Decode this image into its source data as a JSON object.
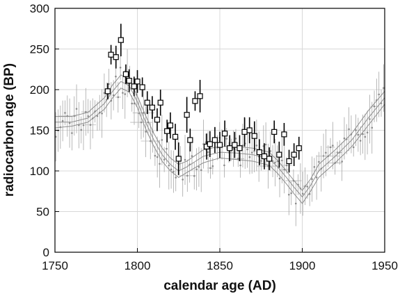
{
  "chart_data": {
    "type": "scatter",
    "title": "",
    "xlabel": "calendar age (AD)",
    "ylabel": "radiocarbon age (BP)",
    "xlim": [
      1750,
      1950
    ],
    "ylim": [
      0,
      300
    ],
    "xticks": [
      1750,
      1800,
      1850,
      1900,
      1950
    ],
    "yticks": [
      0,
      50,
      100,
      150,
      200,
      250,
      300
    ],
    "grid": true,
    "legend": "none",
    "colors": {
      "measurements": "#000000",
      "calibration": "#8c8c8c",
      "grid": "#d8d8d8"
    },
    "series": [
      {
        "marker": "open-square",
        "x": [
          1782,
          1784,
          1787,
          1790,
          1793,
          1795,
          1798,
          1800,
          1803,
          1806,
          1809,
          1812,
          1814,
          1818,
          1820,
          1823,
          1825,
          1830,
          1832,
          1835,
          1838,
          1842,
          1844,
          1847,
          1850,
          1853,
          1856,
          1859,
          1862,
          1865,
          1868,
          1871,
          1874,
          1877,
          1880,
          1883,
          1886,
          1889,
          1892,
          1895,
          1898
        ],
        "y": [
          198,
          243,
          240,
          261,
          219,
          211,
          204,
          210,
          203,
          184,
          178,
          163,
          184,
          149,
          156,
          142,
          115,
          169,
          138,
          186,
          192,
          130,
          133,
          138,
          132,
          146,
          128,
          132,
          128,
          148,
          150,
          143,
          123,
          118,
          115,
          148,
          120,
          145,
          112,
          120,
          128
        ],
        "err": [
          10,
          12,
          14,
          20,
          12,
          14,
          12,
          14,
          12,
          14,
          14,
          14,
          16,
          14,
          16,
          16,
          20,
          22,
          14,
          12,
          20,
          16,
          16,
          16,
          16,
          16,
          16,
          16,
          16,
          18,
          16,
          18,
          16,
          16,
          14,
          14,
          16,
          14,
          14,
          14,
          14
        ]
      },
      {
        "name": "",
        "marker": "line",
        "x": [
          1750,
          1760,
          1770,
          1780,
          1785,
          1790,
          1795,
          1800,
          1805,
          1810,
          1815,
          1820,
          1825,
          1830,
          1840,
          1850,
          1860,
          1870,
          1880,
          1885,
          1890,
          1895,
          1900,
          1905,
          1910,
          1920,
          1930,
          1940,
          1950
        ],
        "y": [
          160,
          160,
          165,
          183,
          198,
          210,
          205,
          185,
          160,
          138,
          120,
          108,
          100,
          105,
          118,
          123,
          122,
          120,
          115,
          105,
          93,
          80,
          68,
          82,
          100,
          118,
          138,
          165,
          190
        ]
      },
      {
        "marker": "line",
        "x": [
          1750,
          1760,
          1770,
          1780,
          1785,
          1790,
          1795,
          1800,
          1805,
          1810,
          1815,
          1820,
          1825,
          1830,
          1840,
          1850,
          1860,
          1870,
          1880,
          1885,
          1890,
          1895,
          1900,
          1905,
          1910,
          1920,
          1930,
          1940,
          1950
        ],
        "y": [
          153,
          155,
          160,
          176,
          190,
          202,
          197,
          178,
          152,
          130,
          112,
          100,
          92,
          98,
          110,
          116,
          114,
          112,
          107,
          97,
          85,
          72,
          60,
          75,
          92,
          110,
          130,
          156,
          182
        ]
      },
      {
        "marker": "line",
        "x": [
          1750,
          1760,
          1770,
          1780,
          1785,
          1790,
          1795,
          1800,
          1805,
          1810,
          1815,
          1820,
          1825,
          1830,
          1840,
          1850,
          1860,
          1870,
          1880,
          1885,
          1890,
          1895,
          1900,
          1905,
          1910,
          1920,
          1930,
          1940,
          1950
        ],
        "y": [
          167,
          167,
          172,
          190,
          206,
          218,
          213,
          192,
          168,
          146,
          128,
          116,
          108,
          112,
          126,
          130,
          130,
          128,
          123,
          113,
          101,
          88,
          76,
          90,
          108,
          126,
          146,
          174,
          198
        ]
      }
    ]
  }
}
